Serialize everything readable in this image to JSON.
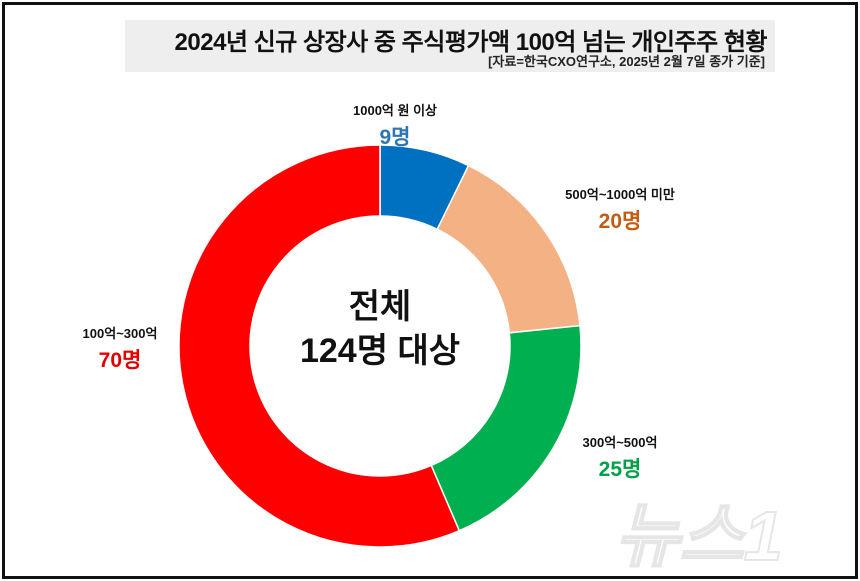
{
  "chart_data": {
    "type": "pie",
    "donut": true,
    "title": "2024년 신규 상장사 중 주식평가액 100억 넘는 개인주주 현황",
    "subtitle": "[자료=한국CXO연구소, 2025년 2월 7일 종가 기준]",
    "center_label": [
      "전체",
      "124명 대상"
    ],
    "slices": [
      {
        "label": "1000억 원 이상",
        "value": 9,
        "value_label": "9명",
        "color": "#0070c0",
        "text_color": "#2e75b6"
      },
      {
        "label": "500억~1000억 미만",
        "value": 20,
        "value_label": "20명",
        "color": "#f4b183",
        "text_color": "#c55a11"
      },
      {
        "label": "300억~500억",
        "value": 25,
        "value_label": "25명",
        "color": "#00b050",
        "text_color": "#00a04a"
      },
      {
        "label": "100억~300억",
        "value": 70,
        "value_label": "70명",
        "color": "#ff0000",
        "text_color": "#e00000"
      }
    ],
    "total": 124
  },
  "watermark": "뉴스1"
}
